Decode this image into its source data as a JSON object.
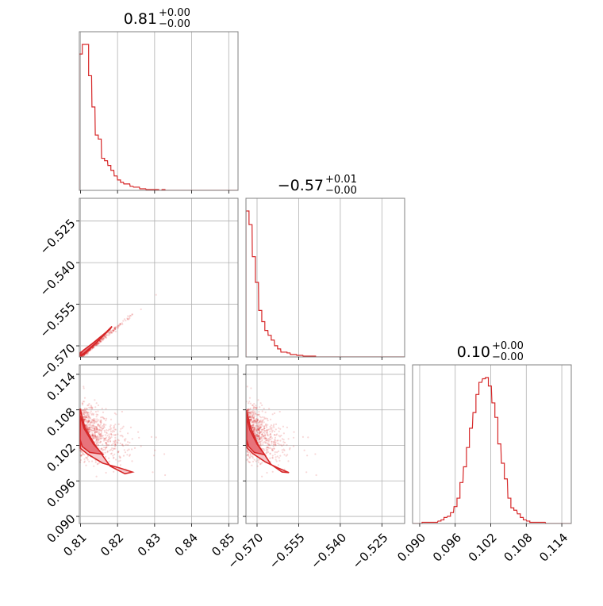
{
  "colors": {
    "accent": "#d62728",
    "fill_dark": "#e8737b",
    "fill_light": "#f6c8cc",
    "grid": "#b0b0b0",
    "frame": "#808080"
  },
  "titles": [
    {
      "main": "0.81",
      "sup": "+0.00",
      "sub": "−0.00"
    },
    {
      "main": "−0.57",
      "sup": "+0.01",
      "sub": "−0.00"
    },
    {
      "main": "0.10",
      "sup": "+0.00",
      "sub": "−0.00"
    }
  ],
  "ticks": {
    "p0": [
      "0.81",
      "0.82",
      "0.83",
      "0.84",
      "0.85"
    ],
    "p1": [
      "−0.570",
      "−0.555",
      "−0.540",
      "−0.525"
    ],
    "p2": [
      "0.090",
      "0.096",
      "0.102",
      "0.108",
      "0.114"
    ]
  },
  "chart_data": {
    "type": "corner",
    "parameters": [
      {
        "index": 0,
        "range": [
          0.8097,
          0.8525
        ],
        "ticks": [
          0.81,
          0.82,
          0.83,
          0.84,
          0.85
        ]
      },
      {
        "index": 1,
        "range": [
          -0.574,
          -0.5168
        ],
        "ticks": [
          -0.57,
          -0.555,
          -0.54,
          -0.525
        ]
      },
      {
        "index": 2,
        "range": [
          0.0888,
          0.1156
        ],
        "ticks": [
          0.09,
          0.096,
          0.102,
          0.108,
          0.114
        ]
      }
    ],
    "histograms": [
      {
        "param": 0,
        "x": [
          0.8097,
          0.8105,
          0.8114,
          0.8122,
          0.8131,
          0.814,
          0.8148,
          0.8157,
          0.8165,
          0.8174,
          0.8182,
          0.8191,
          0.82,
          0.8208,
          0.8217,
          0.8225,
          0.8234,
          0.8243,
          0.8251,
          0.826,
          0.8268,
          0.8277,
          0.8285,
          0.8294,
          0.8303,
          0.8311,
          0.832,
          0.8328,
          0.8337,
          0.8346,
          0.8354,
          0.8363,
          0.8371,
          0.838,
          0.8388,
          0.8397,
          0.8406,
          0.8414,
          0.8423,
          0.8431,
          0.844,
          0.8449,
          0.8457,
          0.8466,
          0.8474,
          0.8483,
          0.8491,
          0.85,
          0.8509,
          0.8517
        ],
        "counts": [
          170,
          182,
          182,
          143,
          104,
          69,
          64,
          40,
          37,
          31,
          25,
          18,
          13,
          10,
          8,
          8,
          5,
          4,
          4,
          2,
          2,
          1,
          1,
          1,
          1,
          0,
          1,
          0,
          0,
          0,
          0,
          0,
          0,
          0,
          0,
          0,
          0,
          0,
          0,
          0,
          0,
          0,
          0,
          0,
          0,
          0,
          0,
          0,
          0,
          0
        ]
      },
      {
        "param": 1,
        "x": [
          -0.574,
          -0.5729,
          -0.5717,
          -0.5706,
          -0.5694,
          -0.5683,
          -0.5672,
          -0.566,
          -0.5649,
          -0.5637,
          -0.5626,
          -0.5614,
          -0.5603,
          -0.5592,
          -0.558,
          -0.5569,
          -0.5557,
          -0.5546,
          -0.5534,
          -0.5523,
          -0.5512,
          -0.55,
          -0.5489,
          -0.5477,
          -0.5466,
          -0.5454,
          -0.5443,
          -0.5432,
          -0.542,
          -0.5409,
          -0.5397,
          -0.5386,
          -0.5374,
          -0.5363,
          -0.5352,
          -0.534,
          -0.5329,
          -0.5317,
          -0.5306,
          -0.5294,
          -0.5283,
          -0.5272,
          -0.526,
          -0.5249,
          -0.5237,
          -0.5226,
          -0.5214,
          -0.5203,
          -0.5192,
          -0.518
        ],
        "counts": [
          182,
          165,
          125,
          93,
          58,
          44,
          33,
          27,
          21,
          14,
          10,
          6,
          6,
          5,
          3,
          3,
          2,
          2,
          1,
          1,
          1,
          1,
          0,
          0,
          0,
          0,
          0,
          0,
          0,
          0,
          0,
          0,
          0,
          0,
          0,
          0,
          0,
          0,
          0,
          0,
          0,
          0,
          0,
          0,
          0,
          0,
          0,
          0,
          0,
          0
        ]
      },
      {
        "param": 2,
        "x": [
          0.0888,
          0.0893,
          0.0899,
          0.0904,
          0.0909,
          0.0915,
          0.092,
          0.0925,
          0.0931,
          0.0936,
          0.0941,
          0.0947,
          0.0952,
          0.0958,
          0.0963,
          0.0968,
          0.0974,
          0.0979,
          0.0984,
          0.099,
          0.0995,
          0.1,
          0.1006,
          0.1011,
          0.1016,
          0.1022,
          0.1027,
          0.1032,
          0.1038,
          0.1043,
          0.1049,
          0.1054,
          0.1059,
          0.1065,
          0.107,
          0.1075,
          0.1081,
          0.1086,
          0.1091,
          0.1097,
          0.1102,
          0.1107,
          0.1113,
          0.1118,
          0.1123,
          0.1129,
          0.1134,
          0.1139,
          0.1145,
          0.115
        ],
        "counts": [
          0,
          0,
          0,
          1,
          1,
          1,
          1,
          1,
          2,
          3,
          5,
          6,
          9,
          14,
          21,
          34,
          47,
          63,
          79,
          92,
          107,
          117,
          120,
          121,
          114,
          100,
          88,
          66,
          50,
          37,
          21,
          13,
          11,
          8,
          5,
          3,
          2,
          1,
          1,
          1,
          1,
          1,
          0,
          0,
          0,
          0,
          0,
          0,
          0,
          0
        ]
      }
    ]
  }
}
